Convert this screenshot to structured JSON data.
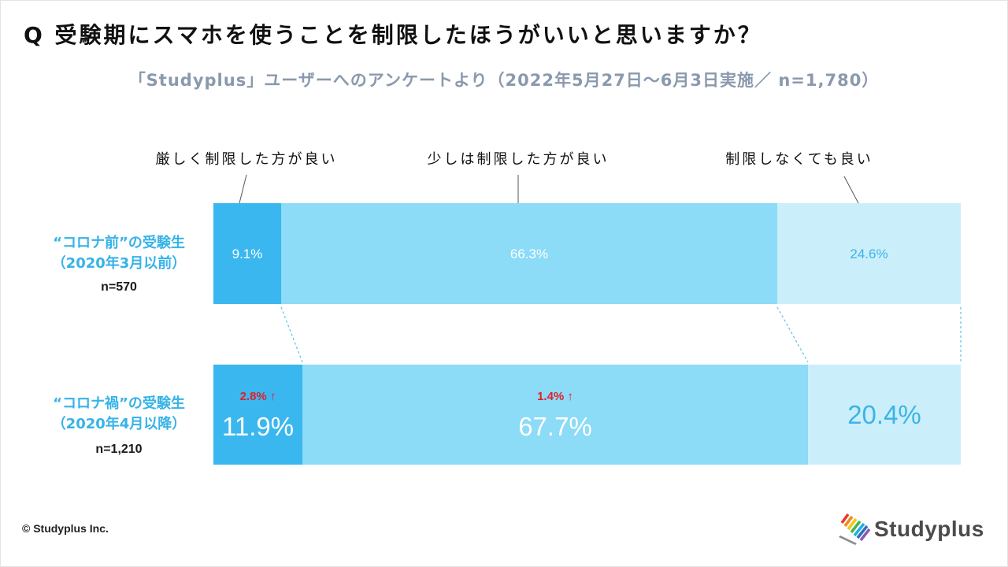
{
  "chart_data": {
    "type": "bar",
    "orientation": "horizontal",
    "stacked": true,
    "title": "Q 受験期にスマホを使うことを制限したほうがいいと思いますか？",
    "subtitle": "「Studyplus」ユーザーへのアンケートより（2022年5月27日〜6月3日実施／ n=1,780）",
    "categories": [
      {
        "label": "“コロナ前”の受験生",
        "period": "（2020年3月以前）",
        "n": "n=570"
      },
      {
        "label": "“コロナ禍”の受験生",
        "period": "（2020年4月以降）",
        "n": "n=1,210"
      }
    ],
    "series": [
      {
        "name": "厳しく制限した方が良い",
        "values": [
          9.1,
          11.9
        ],
        "labels": [
          "9.1%",
          "11.9%"
        ],
        "color": "#3ab7ef"
      },
      {
        "name": "少しは制限した方が良い",
        "values": [
          66.3,
          67.7
        ],
        "labels": [
          "66.3%",
          "67.7%"
        ],
        "color": "#8cdbf7"
      },
      {
        "name": "制限しなくても良い",
        "values": [
          24.6,
          20.4
        ],
        "labels": [
          "24.6%",
          "20.4%"
        ],
        "color": "#cbeefb"
      }
    ],
    "annotations": [
      {
        "row": 1,
        "series": 0,
        "text": "2.8% ↑"
      },
      {
        "row": 1,
        "series": 1,
        "text": "1.4% ↑"
      }
    ],
    "xlim": [
      0,
      100
    ],
    "grid": false,
    "legend": "top"
  },
  "colors": {
    "category_label": "#36b3e7",
    "change_annotation": "#e0202a",
    "subtitle": "#8a99ad"
  },
  "footer": {
    "copyright": "© Studyplus Inc."
  },
  "logo": {
    "text": "Studyplus",
    "icon": "studyplus-logo-icon"
  }
}
